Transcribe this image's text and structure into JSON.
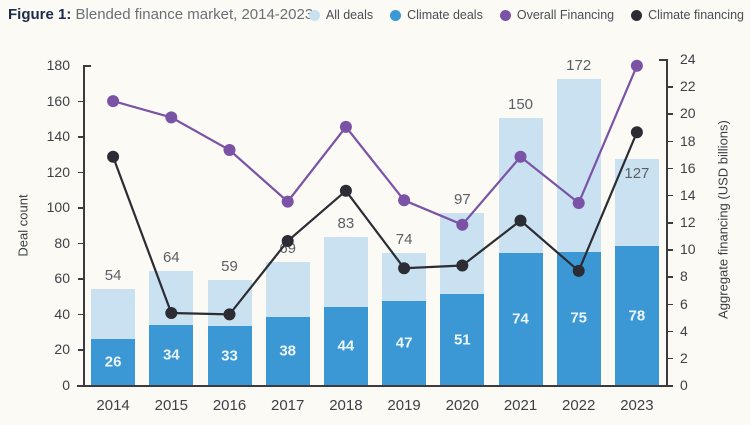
{
  "figure": {
    "title_prefix": "Figure 1:",
    "title_rest": " Blended finance market, 2014-2023"
  },
  "legend": [
    {
      "name": "all-deals",
      "label": "All deals",
      "color": "#c9e1f1"
    },
    {
      "name": "climate-deals",
      "label": "Climate deals",
      "color": "#3b98d5"
    },
    {
      "name": "overall-financing",
      "label": "Overall Financing",
      "color": "#7b53a6"
    },
    {
      "name": "climate-financing",
      "label": "Climate financing",
      "color": "#2c2c34"
    }
  ],
  "chart_data": {
    "type": "combo-bar-line",
    "categories": [
      "2014",
      "2015",
      "2016",
      "2017",
      "2018",
      "2019",
      "2020",
      "2021",
      "2022",
      "2023"
    ],
    "series": [
      {
        "name": "All deals",
        "type": "bar",
        "axis": "left",
        "color": "#c9e1f1",
        "values": [
          54,
          64,
          59,
          69,
          83,
          74,
          97,
          150,
          172,
          127
        ],
        "label_color": "#5c6066",
        "label_inside_index": 9
      },
      {
        "name": "Climate deals",
        "type": "bar",
        "axis": "left",
        "color": "#3b98d5",
        "values": [
          26,
          34,
          33,
          38,
          44,
          47,
          51,
          74,
          75,
          78
        ],
        "label_color": "#eef6fc"
      },
      {
        "name": "Overall Financing",
        "type": "line",
        "axis": "right",
        "color": "#7b53a6",
        "values": [
          20.9,
          19.7,
          17.3,
          13.5,
          19.0,
          13.6,
          11.8,
          16.8,
          13.4,
          23.5
        ]
      },
      {
        "name": "Climate financing",
        "type": "line",
        "axis": "right",
        "color": "#2c2c34",
        "values": [
          16.8,
          5.3,
          5.2,
          10.6,
          14.3,
          8.6,
          8.8,
          12.1,
          8.4,
          18.6
        ]
      }
    ],
    "left_axis": {
      "label": "Deal count",
      "min": 0,
      "max": 180,
      "step": 20
    },
    "right_axis": {
      "label": "Aggregate financing (USD billions)",
      "min": 0,
      "max": 24,
      "step": 2
    },
    "grid": false,
    "legend_position": "top-right"
  }
}
